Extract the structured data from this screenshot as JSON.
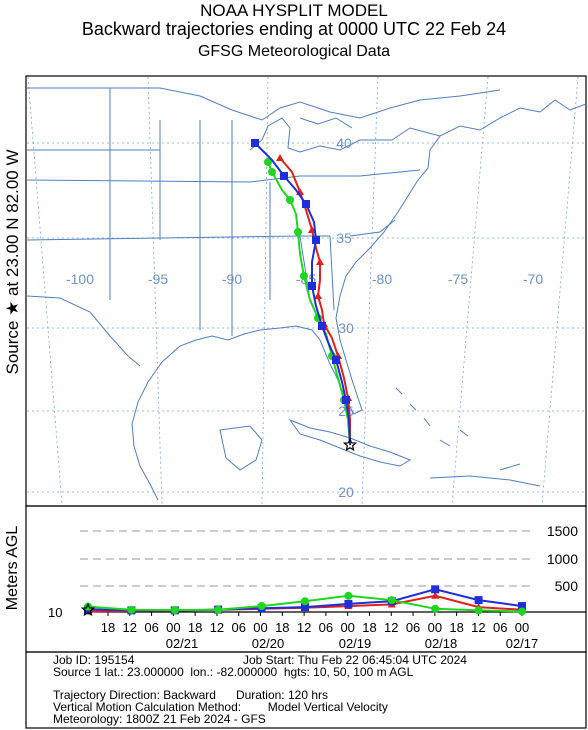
{
  "header": {
    "model": "NOAA HYSPLIT MODEL",
    "title": "Backward trajectories ending at 0000 UTC 22 Feb 24",
    "met": "GFSG Meteorological Data"
  },
  "source_label": "Source ★ at   23.00 N   82.00 W",
  "map": {
    "lon_labels": [
      "-100",
      "-95",
      "-90",
      "-85",
      "-80",
      "-75",
      "-70"
    ],
    "lat_labels": [
      "40",
      "35",
      "30",
      "25",
      "20"
    ],
    "grid_color": "#7aa6d6",
    "map_line_color": "#4f7fbf"
  },
  "vertical": {
    "ylabel": "Meters AGL",
    "levels": [
      "1500",
      "1000",
      "500"
    ],
    "start_height": "10",
    "hour_ticks": [
      "18",
      "12",
      "06",
      "00",
      "18",
      "12",
      "06",
      "00",
      "18",
      "12",
      "06",
      "00",
      "18",
      "12",
      "06",
      "00",
      "18",
      "12",
      "06",
      "00"
    ],
    "date_ticks": [
      "02/21",
      "02/20",
      "02/19",
      "02/18",
      "02/17"
    ]
  },
  "series_colors": {
    "red": "#e0201c",
    "blue": "#1f2ed8",
    "green": "#1fd61f"
  },
  "info": {
    "job_id": "Job ID: 195154",
    "job_start": "Job Start: Thu Feb 22 06:45:04 UTC 2024",
    "source": "Source 1 lat.: 23.000000  lon.: -82.000000  hgts: 10, 50, 100 m AGL",
    "direction": "Trajectory Direction: Backward      Duration: 120 hrs",
    "vertical": "Vertical Motion Calculation Method:        Model Vertical Velocity",
    "meteorology": "Meteorology: 1800Z 21 Feb 2024 - GFS"
  },
  "chart_data": {
    "type": "line",
    "title": "Backward trajectories ending at 0000 UTC 22 Feb 24",
    "ylabel": "Meters AGL",
    "x": [
      "02/22 00",
      "02/21 12",
      "02/21 00",
      "02/20 12",
      "02/20 00",
      "02/19 12",
      "02/19 00",
      "02/18 12",
      "02/18 00",
      "02/17 12",
      "02/17 00"
    ],
    "series": [
      {
        "color": "red",
        "values": [
          10,
          20,
          25,
          40,
          60,
          80,
          110,
          140,
          300,
          90,
          40
        ]
      },
      {
        "color": "blue",
        "values": [
          50,
          30,
          30,
          45,
          70,
          90,
          150,
          200,
          420,
          220,
          110
        ]
      },
      {
        "color": "green",
        "values": [
          100,
          40,
          35,
          40,
          110,
          200,
          300,
          220,
          60,
          30,
          10
        ]
      }
    ]
  }
}
